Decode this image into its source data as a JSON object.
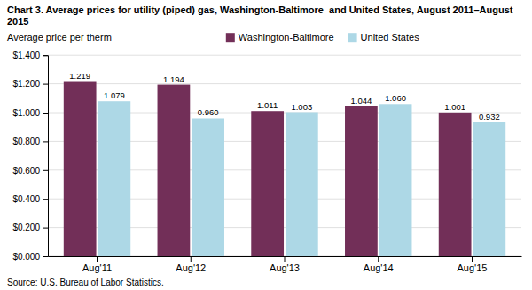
{
  "chart_data": {
    "type": "bar",
    "title": "Chart 3. Average prices for utility (piped) gas, Washington-Baltimore  and United States, August 2011–August\n2015",
    "ylabel": "Average price per therm",
    "source": "Source: U.S. Bureau of Labor Statistics.",
    "categories": [
      "Aug'11",
      "Aug'12",
      "Aug'13",
      "Aug'14",
      "Aug'15"
    ],
    "series": [
      {
        "name": "Washington-Baltimore",
        "color": "#722F58",
        "values": [
          1.219,
          1.194,
          1.011,
          1.044,
          1.001
        ],
        "value_labels": [
          "1.219",
          "1.194",
          "1.011",
          "1.044",
          "1.001"
        ]
      },
      {
        "name": "United States",
        "color": "#ADD8E6",
        "values": [
          1.079,
          0.96,
          1.003,
          1.06,
          0.932
        ],
        "value_labels": [
          "1.079",
          "0.960",
          "1.003",
          "1.060",
          "0.932"
        ]
      }
    ],
    "ylim": [
      0,
      1.4
    ],
    "yticks": [
      {
        "value": 0.0,
        "label": "$0.000"
      },
      {
        "value": 0.2,
        "label": "$0.200"
      },
      {
        "value": 0.4,
        "label": "$0.400"
      },
      {
        "value": 0.6,
        "label": "$0.600"
      },
      {
        "value": 0.8,
        "label": "$0.800"
      },
      {
        "value": 1.0,
        "label": "$1.000"
      },
      {
        "value": 1.2,
        "label": "$1.200"
      },
      {
        "value": 1.4,
        "label": "$1.400"
      }
    ],
    "grid": true,
    "legend": "top",
    "data_labels": true
  }
}
